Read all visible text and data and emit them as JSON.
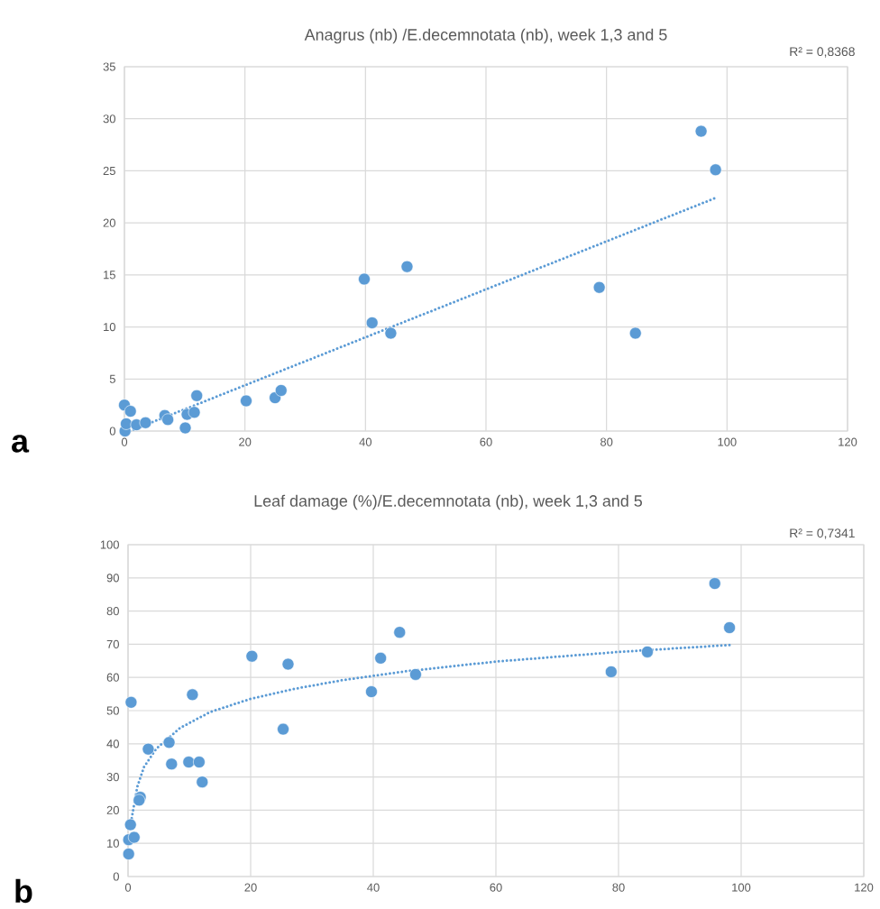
{
  "chart_data": [
    {
      "type": "scatter",
      "title": "Anagrus (nb) /E.decemnotata (nb), week 1,3 and 5",
      "annotations": [
        "R² = 0,8368",
        "a"
      ],
      "grid": true,
      "xlim": [
        0,
        120
      ],
      "xticks": [
        0,
        20,
        40,
        60,
        80,
        100,
        120
      ],
      "ylim": [
        0,
        35
      ],
      "yticks": [
        0,
        5,
        10,
        15,
        20,
        25,
        30,
        35
      ],
      "series": [
        {
          "marker": "circle",
          "color": "#5b9bd5",
          "x": [
            0.0,
            1.0,
            0.1,
            0.3,
            2.0,
            3.5,
            6.7,
            7.2,
            10.1,
            10.4,
            11.6,
            12.0,
            20.2,
            25.0,
            26.0,
            39.8,
            41.1,
            44.2,
            46.9,
            78.8,
            84.8,
            95.7,
            98.1
          ],
          "values": [
            2.5,
            1.9,
            0.0,
            0.7,
            0.6,
            0.8,
            1.5,
            1.1,
            0.3,
            1.6,
            1.8,
            3.4,
            2.9,
            3.2,
            3.9,
            14.6,
            10.4,
            9.4,
            15.8,
            13.8,
            9.4,
            28.8,
            25.1
          ]
        },
        {
          "type": "line",
          "marker": "none",
          "line_style": "dotted",
          "color": "#5b9bd5",
          "x": [
            0.9,
            98.1
          ],
          "values": [
            0.0,
            22.4
          ]
        }
      ]
    },
    {
      "type": "scatter",
      "title": "Leaf damage (%)/E.decemnotata (nb), week 1,3 and 5",
      "annotations": [
        "R² = 0,7341",
        "b"
      ],
      "grid": true,
      "xlim": [
        0,
        120
      ],
      "xticks": [
        0,
        20,
        40,
        60,
        80,
        100,
        120
      ],
      "ylim": [
        0,
        100
      ],
      "yticks": [
        0,
        10,
        20,
        30,
        40,
        50,
        60,
        70,
        80,
        90,
        100
      ],
      "series": [
        {
          "marker": "circle",
          "color": "#5b9bd5",
          "x": [
            0.5,
            0.4,
            0.1,
            1.0,
            0.1,
            2.0,
            1.8,
            3.3,
            6.7,
            7.1,
            9.9,
            11.6,
            12.1,
            10.5,
            20.2,
            26.1,
            25.3,
            39.7,
            41.2,
            44.3,
            46.9,
            78.8,
            84.7,
            95.7,
            98.1
          ],
          "values": [
            52.5,
            15.6,
            11.1,
            11.8,
            6.8,
            23.9,
            23.0,
            38.4,
            40.4,
            33.9,
            34.5,
            34.5,
            28.5,
            54.8,
            66.4,
            64.0,
            44.4,
            55.7,
            65.8,
            73.6,
            60.9,
            61.7,
            67.7,
            88.3,
            75.0
          ]
        },
        {
          "type": "line",
          "marker": "none",
          "line_style": "dotted",
          "color": "#5b9bd5",
          "x": [
            0.6,
            1.5,
            2.6,
            4.6,
            8.5,
            13.4,
            19.9,
            27.2,
            35,
            45,
            60,
            80,
            98.2
          ],
          "values": [
            17.6,
            27,
            33,
            38.5,
            44.8,
            49.6,
            53.5,
            56.6,
            59.2,
            61.8,
            64.8,
            67.7,
            69.8
          ]
        }
      ]
    }
  ]
}
